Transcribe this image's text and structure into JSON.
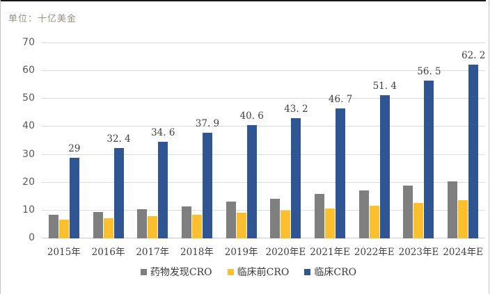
{
  "unit_label": "单位：十亿美金",
  "chart_data": {
    "type": "bar",
    "title": "",
    "unit": "十亿美金",
    "categories": [
      "2015年",
      "2016年",
      "2017年",
      "2018年",
      "2019年",
      "2020年E",
      "2021年E",
      "2022年E",
      "2023年E",
      "2024年E"
    ],
    "series": [
      {
        "name": "药物发现CRO",
        "color": "#7F7F7F",
        "values": [
          8.5,
          9.5,
          10.4,
          11.5,
          13.1,
          14.3,
          16.0,
          17.2,
          19.0,
          20.5
        ]
      },
      {
        "name": "临床前CRO",
        "color": "#FCBF2D",
        "values": [
          6.8,
          7.2,
          7.9,
          8.5,
          9.2,
          9.9,
          10.8,
          11.8,
          12.7,
          13.7
        ]
      },
      {
        "name": "临床CRO",
        "color": "#2F5693",
        "values": [
          29,
          32.4,
          34.6,
          37.9,
          40.6,
          43.2,
          46.7,
          51.4,
          56.5,
          62.2
        ],
        "data_labels": [
          "29",
          "32. 4",
          "34. 6",
          "37. 9",
          "40. 6",
          "43. 2",
          "46. 7",
          "51. 4",
          "56. 5",
          "62. 2"
        ]
      }
    ],
    "ylim": [
      0,
      70
    ],
    "yticks": [
      0,
      10,
      20,
      30,
      40,
      50,
      60,
      70
    ],
    "grid": true,
    "legend_position": "bottom",
    "colors": {
      "gridline": "#D9D9D9",
      "axis_text": "#595959",
      "label_text": "#404040",
      "unit_text": "#9A9184"
    }
  }
}
